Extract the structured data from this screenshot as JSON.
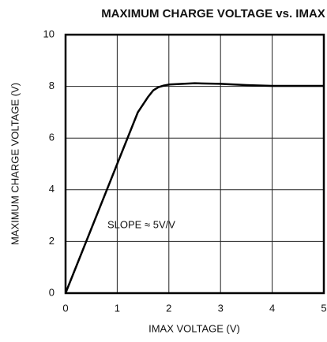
{
  "chart_data": {
    "type": "line",
    "title": "MAXIMUM CHARGE VOLTAGE vs. IMAX",
    "x_label": "IMAX VOLTAGE (V)",
    "y_label": "MAXIMUM CHARGE VOLTAGE (V)",
    "annotation": "SLOPE ≈ 5V/V",
    "x": [
      0,
      0.5,
      1,
      1.4,
      1.6,
      1.7,
      1.8,
      1.9,
      2,
      2.5,
      3,
      3.5,
      4,
      4.5,
      5
    ],
    "series": [
      {
        "color": "#000000",
        "values": [
          0,
          2.5,
          5,
          7,
          7.6,
          7.85,
          7.97,
          8.03,
          8.07,
          8.12,
          8.1,
          8.05,
          8.02,
          8.02,
          8.02
        ]
      }
    ],
    "xlim": [
      0,
      5
    ],
    "xticks": [
      0,
      1,
      2,
      3,
      4,
      5
    ],
    "ylim": [
      0,
      10
    ],
    "yticks": [
      0,
      2,
      4,
      6,
      8,
      10
    ],
    "grid": true
  }
}
